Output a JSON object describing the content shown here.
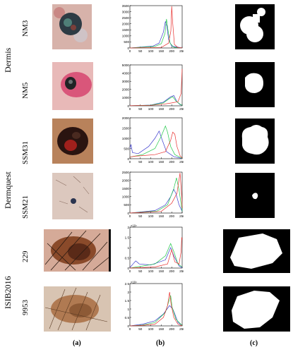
{
  "groups": {
    "dermis": "Dermis",
    "dermquest": "Dermquest",
    "isib": "ISIB2016"
  },
  "rows": [
    {
      "label": "NM3",
      "hist": {
        "ymax": 3500,
        "yticks": [
          0,
          500,
          1000,
          1500,
          2000,
          2500,
          3000,
          3500
        ],
        "exp": "",
        "peaks": {
          "red": [
            [
              0,
              2
            ],
            [
              150,
              40
            ],
            [
              185,
              400
            ],
            [
              196,
              1400
            ],
            [
              200,
              3450
            ],
            [
              205,
              2000
            ],
            [
              213,
              300
            ],
            [
              230,
              30
            ],
            [
              250,
              5
            ]
          ],
          "green": [
            [
              0,
              2
            ],
            [
              120,
              120
            ],
            [
              150,
              350
            ],
            [
              168,
              1200
            ],
            [
              175,
              2400
            ],
            [
              182,
              1500
            ],
            [
              192,
              400
            ],
            [
              210,
              60
            ],
            [
              250,
              5
            ]
          ],
          "blue": [
            [
              0,
              2
            ],
            [
              110,
              150
            ],
            [
              140,
              400
            ],
            [
              160,
              1300
            ],
            [
              170,
              2200
            ],
            [
              177,
              1800
            ],
            [
              185,
              700
            ],
            [
              200,
              150
            ],
            [
              250,
              5
            ]
          ]
        }
      }
    },
    {
      "label": "NM5",
      "hist": {
        "ymax": 5000,
        "yticks": [
          0,
          1000,
          2000,
          3000,
          4000,
          5000
        ],
        "exp": "",
        "peaks": {
          "red": [
            [
              0,
              5
            ],
            [
              100,
              60
            ],
            [
              160,
              200
            ],
            [
              200,
              350
            ],
            [
              230,
              500
            ],
            [
              245,
              1500
            ],
            [
              250,
              4500
            ]
          ],
          "green": [
            [
              0,
              5
            ],
            [
              100,
              80
            ],
            [
              160,
              350
            ],
            [
              190,
              900
            ],
            [
              205,
              1100
            ],
            [
              220,
              600
            ],
            [
              240,
              200
            ],
            [
              250,
              50
            ]
          ],
          "blue": [
            [
              0,
              5
            ],
            [
              100,
              90
            ],
            [
              160,
              450
            ],
            [
              195,
              1100
            ],
            [
              210,
              1250
            ],
            [
              225,
              500
            ],
            [
              240,
              150
            ],
            [
              250,
              50
            ]
          ]
        }
      }
    },
    {
      "label": "SSM31",
      "hist": {
        "ymax": 2000,
        "yticks": [
          0,
          500,
          1000,
          1500,
          2000
        ],
        "exp": "",
        "peaks": {
          "red": [
            [
              0,
              80
            ],
            [
              20,
              120
            ],
            [
              60,
              150
            ],
            [
              120,
              200
            ],
            [
              170,
              350
            ],
            [
              195,
              900
            ],
            [
              205,
              1300
            ],
            [
              215,
              1200
            ],
            [
              225,
              600
            ],
            [
              240,
              150
            ],
            [
              250,
              30
            ]
          ],
          "green": [
            [
              0,
              80
            ],
            [
              20,
              120
            ],
            [
              60,
              200
            ],
            [
              120,
              500
            ],
            [
              150,
              1100
            ],
            [
              170,
              1600
            ],
            [
              180,
              1300
            ],
            [
              195,
              600
            ],
            [
              215,
              200
            ],
            [
              250,
              20
            ]
          ],
          "blue": [
            [
              0,
              500
            ],
            [
              5,
              700
            ],
            [
              12,
              300
            ],
            [
              40,
              250
            ],
            [
              90,
              600
            ],
            [
              120,
              1000
            ],
            [
              140,
              1350
            ],
            [
              155,
              900
            ],
            [
              175,
              350
            ],
            [
              210,
              100
            ],
            [
              250,
              10
            ]
          ]
        }
      }
    },
    {
      "label": "SSM21",
      "hist": {
        "ymax": 2500,
        "yticks": [
          0,
          500,
          1000,
          1500,
          2000,
          2500
        ],
        "exp": "",
        "peaks": {
          "red": [
            [
              0,
              2
            ],
            [
              150,
              100
            ],
            [
              200,
              600
            ],
            [
              225,
              1200
            ],
            [
              240,
              2450
            ],
            [
              248,
              1000
            ],
            [
              250,
              300
            ]
          ],
          "green": [
            [
              0,
              2
            ],
            [
              130,
              120
            ],
            [
              180,
              500
            ],
            [
              210,
              1500
            ],
            [
              223,
              2150
            ],
            [
              235,
              1400
            ],
            [
              248,
              300
            ],
            [
              250,
              100
            ]
          ],
          "blue": [
            [
              0,
              2
            ],
            [
              120,
              150
            ],
            [
              170,
              500
            ],
            [
              195,
              1000
            ],
            [
              210,
              1450
            ],
            [
              220,
              1200
            ],
            [
              235,
              500
            ],
            [
              250,
              100
            ]
          ]
        }
      }
    },
    {
      "label": "229",
      "hist": {
        "ymax": 2,
        "yticks": [
          0,
          0.5,
          1,
          1.5,
          2
        ],
        "exp": "×10⁴",
        "peaks": {
          "red": [
            [
              0,
              0
            ],
            [
              50,
              0.02
            ],
            [
              120,
              0.05
            ],
            [
              180,
              0.2
            ],
            [
              200,
              0.9
            ],
            [
              215,
              0.3
            ],
            [
              235,
              0.2
            ],
            [
              245,
              0.8
            ],
            [
              248,
              1.5
            ],
            [
              250,
              1.4
            ]
          ],
          "green": [
            [
              0,
              0
            ],
            [
              30,
              0.05
            ],
            [
              60,
              0.1
            ],
            [
              120,
              0.2
            ],
            [
              170,
              0.6
            ],
            [
              195,
              1.2
            ],
            [
              210,
              0.8
            ],
            [
              230,
              0.2
            ],
            [
              250,
              0.05
            ]
          ],
          "blue": [
            [
              0,
              0.02
            ],
            [
              15,
              0.2
            ],
            [
              28,
              0.35
            ],
            [
              45,
              0.2
            ],
            [
              100,
              0.15
            ],
            [
              170,
              0.4
            ],
            [
              195,
              1.0
            ],
            [
              210,
              0.6
            ],
            [
              235,
              0.1
            ],
            [
              250,
              0.02
            ]
          ]
        }
      }
    },
    {
      "label": "9953",
      "hist": {
        "ymax": 2.5,
        "yticks": [
          0,
          0.5,
          1,
          1.5,
          2,
          2.5
        ],
        "exp": "×10⁴",
        "peaks": {
          "red": [
            [
              0,
              0
            ],
            [
              50,
              0.02
            ],
            [
              120,
              0.1
            ],
            [
              160,
              0.5
            ],
            [
              180,
              1.2
            ],
            [
              190,
              2.0
            ],
            [
              197,
              1.3
            ],
            [
              210,
              0.5
            ],
            [
              230,
              0.1
            ],
            [
              250,
              0
            ]
          ],
          "green": [
            [
              0,
              0
            ],
            [
              60,
              0.05
            ],
            [
              120,
              0.2
            ],
            [
              170,
              0.8
            ],
            [
              195,
              1.8
            ],
            [
              202,
              1.1
            ],
            [
              220,
              0.4
            ],
            [
              250,
              0.02
            ]
          ],
          "blue": [
            [
              0,
              0
            ],
            [
              60,
              0.1
            ],
            [
              120,
              0.3
            ],
            [
              160,
              0.7
            ],
            [
              190,
              1.2
            ],
            [
              205,
              1.0
            ],
            [
              215,
              0.7
            ],
            [
              230,
              0.2
            ],
            [
              250,
              0.02
            ]
          ]
        }
      }
    }
  ],
  "xticks": [
    0,
    50,
    100,
    150,
    200,
    250
  ],
  "columns": [
    "(a)",
    "(b)",
    "(c)"
  ],
  "colors": {
    "red": "#e8312f",
    "green": "#22c84a",
    "blue": "#3a3acd"
  }
}
